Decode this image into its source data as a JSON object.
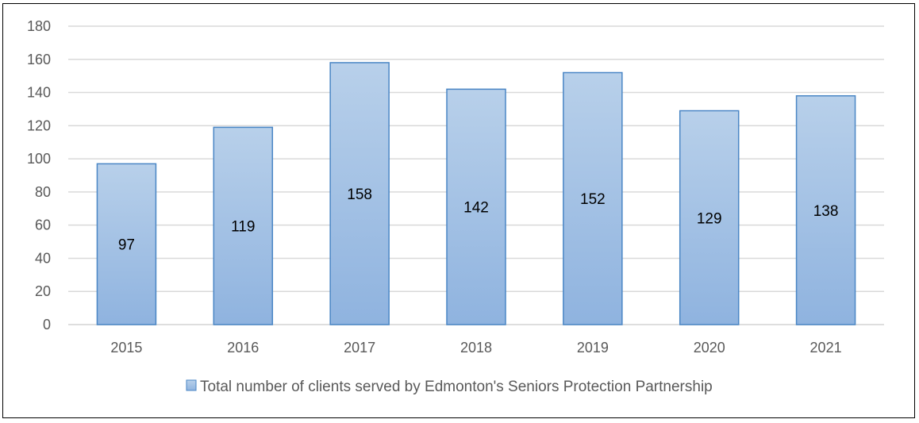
{
  "chart_data": {
    "type": "bar",
    "categories": [
      "2015",
      "2016",
      "2017",
      "2018",
      "2019",
      "2020",
      "2021"
    ],
    "series": [
      {
        "name": "Total number of clients served by Edmonton's Seniors Protection Partnership",
        "values": [
          97,
          119,
          158,
          142,
          152,
          129,
          138
        ]
      }
    ],
    "title": "",
    "xlabel": "",
    "ylabel": "",
    "ylim": [
      0,
      180
    ],
    "yticks": [
      "0",
      "20",
      "40",
      "60",
      "80",
      "100",
      "120",
      "140",
      "160",
      "180"
    ],
    "grid": true,
    "legend_position": "bottom",
    "colors": {
      "bar_top": "#b8d0ea",
      "bar_bottom": "#8fb3df",
      "bar_border": "#4a86c5",
      "grid": "#d9d9d9"
    }
  }
}
